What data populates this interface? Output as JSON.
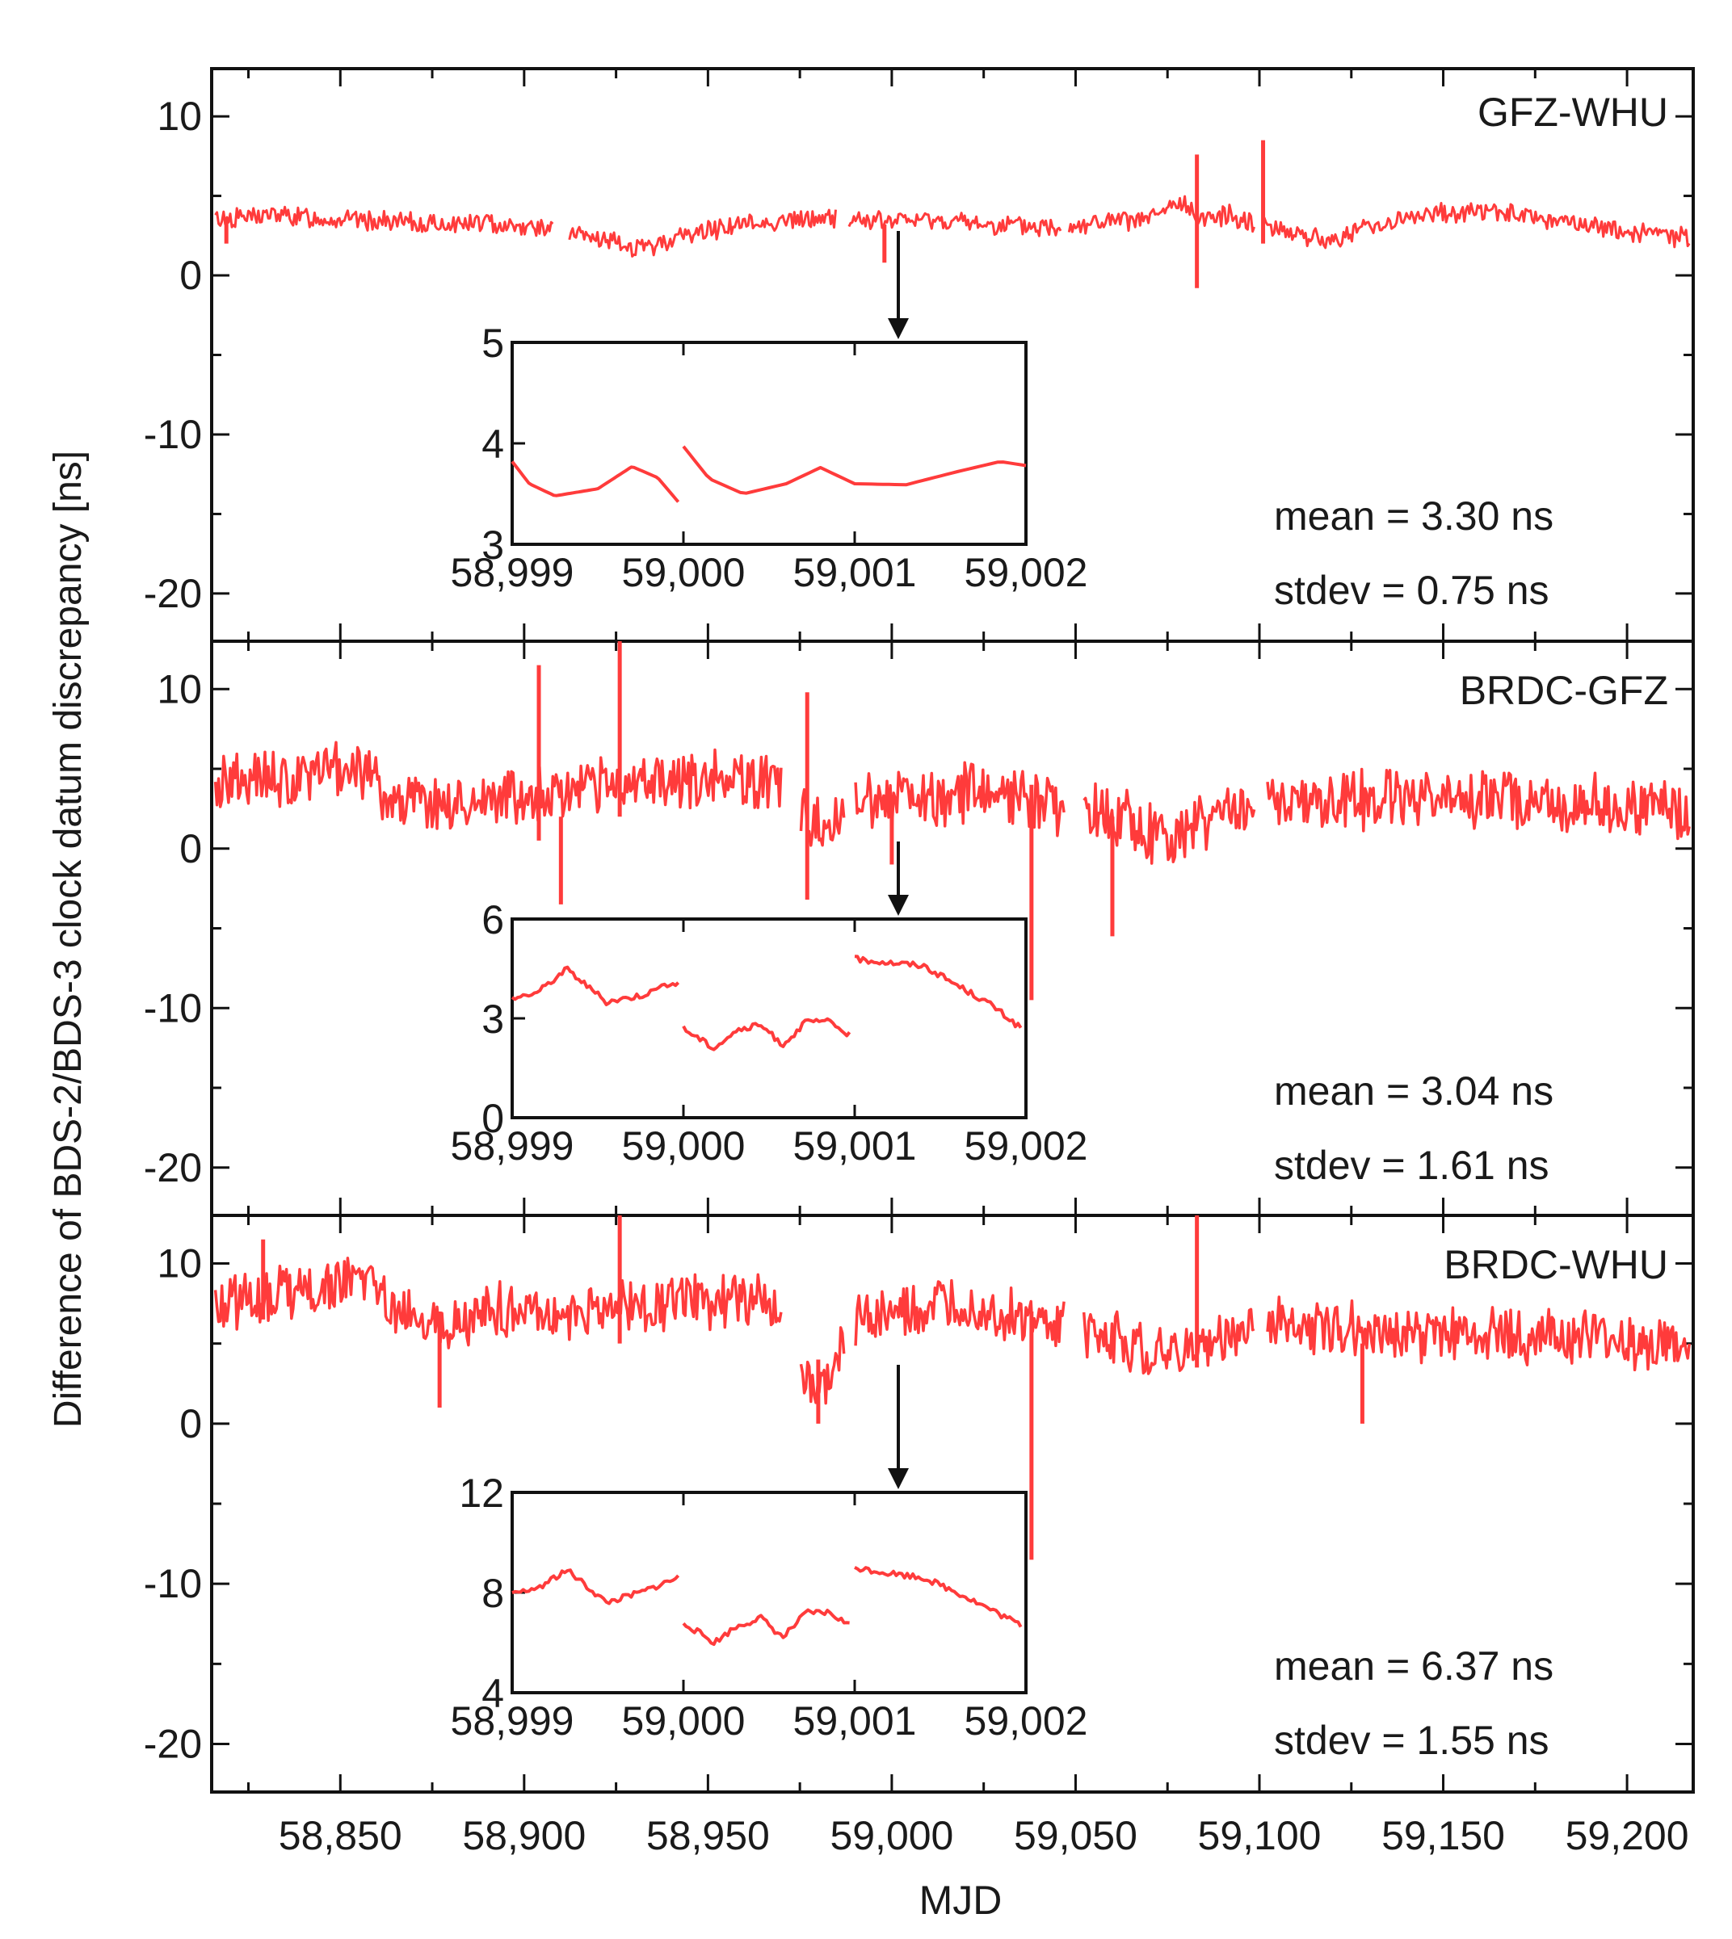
{
  "figure": {
    "ylabel": "Difference of BDS-2/BDS-3 clock datum discrepancy [ns]",
    "xlabel": "MJD",
    "series_color": "#ff3b3b"
  },
  "chart_data": [
    {
      "type": "line",
      "title": "GFZ-WHU",
      "xlabel": "MJD",
      "ylabel": "Difference of BDS-2/BDS-3 clock datum discrepancy [ns]",
      "xlim": [
        58815,
        59218
      ],
      "ylim": [
        -23,
        13
      ],
      "xticks": [
        58850,
        58900,
        58950,
        59000,
        59050,
        59100,
        59150,
        59200
      ],
      "xtick_labels": [
        "58,850",
        "58,900",
        "58,950",
        "59,000",
        "59,050",
        "59,100",
        "59,150",
        "59,200"
      ],
      "yticks": [
        10,
        0,
        -10,
        -20
      ],
      "ytick_labels": [
        "10",
        "0",
        "-10",
        "-20"
      ],
      "series": [
        {
          "name": "GFZ-WHU",
          "color": "#ff3b3b",
          "mean": 3.3,
          "stdev": 0.75,
          "x": [
            58815,
            58830,
            58845,
            58860,
            58875,
            58890,
            58905,
            58915,
            58925,
            58932,
            58940,
            58955,
            58970,
            58985,
            58998,
            59010,
            59025,
            59040,
            59055,
            59070,
            59078,
            59085,
            59092,
            59100,
            59110,
            59118,
            59130,
            59145,
            59160,
            59175,
            59190,
            59205,
            59218
          ],
          "values": [
            3.5,
            3.8,
            3.6,
            3.4,
            3.2,
            3.3,
            3.0,
            2.5,
            2.0,
            1.6,
            2.3,
            3.1,
            3.4,
            3.6,
            3.4,
            3.5,
            3.2,
            3.0,
            3.3,
            3.5,
            4.5,
            3.6,
            3.8,
            3.3,
            2.7,
            2.1,
            3.1,
            3.8,
            4.1,
            3.6,
            3.1,
            2.6,
            2.4
          ]
        }
      ],
      "spikes": [
        {
          "x": 59083,
          "low": -0.8,
          "high": 7.6
        },
        {
          "x": 59101,
          "low": 2.0,
          "high": 8.5
        },
        {
          "x": 58998,
          "low": 0.8,
          "high": 3.2
        },
        {
          "x": 58819,
          "low": 2.0,
          "high": 3.6
        }
      ],
      "stats": {
        "mean_text": "mean = 3.30 ns",
        "stdev_text": "stdev = 0.75 ns"
      },
      "inset": {
        "xlim": [
          58999,
          59002
        ],
        "ylim": [
          3,
          5
        ],
        "xticks": [
          58999,
          59000,
          59001,
          59002
        ],
        "xtick_labels": [
          "58,999",
          "59,000",
          "59,001",
          "59,002"
        ],
        "yticks": [
          5,
          4,
          3
        ],
        "ytick_labels": [
          "5",
          "4",
          "3"
        ],
        "segments": [
          {
            "x": [
              58999.0,
              58999.1,
              58999.25,
              58999.5,
              58999.7,
              58999.85,
              58999.97
            ],
            "values": [
              3.82,
              3.6,
              3.48,
              3.55,
              3.77,
              3.66,
              3.42
            ]
          },
          {
            "x": [
              59000.0,
              59000.15,
              59000.35,
              59000.6,
              59000.8,
              59001.0,
              59001.3,
              59001.6,
              59001.85,
              59002.0
            ],
            "values": [
              3.97,
              3.65,
              3.5,
              3.6,
              3.76,
              3.6,
              3.59,
              3.72,
              3.82,
              3.78
            ]
          }
        ]
      }
    },
    {
      "type": "line",
      "title": "BRDC-GFZ",
      "xlabel": "MJD",
      "ylabel": "Difference of BDS-2/BDS-3 clock datum discrepancy [ns]",
      "xlim": [
        58815,
        59218
      ],
      "ylim": [
        -23,
        13
      ],
      "xticks": [
        58850,
        58900,
        58950,
        59000,
        59050,
        59100,
        59150,
        59200
      ],
      "xtick_labels": [
        "58,850",
        "58,900",
        "58,950",
        "59,000",
        "59,050",
        "59,100",
        "59,150",
        "59,200"
      ],
      "yticks": [
        10,
        0,
        -10,
        -20
      ],
      "ytick_labels": [
        "10",
        "0",
        "-10",
        "-20"
      ],
      "series": [
        {
          "name": "BRDC-GFZ",
          "color": "#ff3b3b",
          "mean": 3.04,
          "stdev": 1.61,
          "x": [
            58815,
            58830,
            58845,
            58855,
            58865,
            58880,
            58895,
            58910,
            58925,
            58940,
            58955,
            58970,
            58980,
            58990,
            59005,
            59020,
            59035,
            59050,
            59065,
            59075,
            59085,
            59100,
            59120,
            59140,
            59160,
            59180,
            59200,
            59218
          ],
          "values": [
            3.8,
            4.2,
            4.5,
            5.2,
            3.2,
            2.8,
            3.4,
            3.5,
            3.9,
            4.2,
            4.5,
            3.9,
            1.2,
            3.2,
            3.0,
            3.4,
            2.9,
            2.4,
            1.6,
            0.5,
            1.8,
            2.7,
            3.0,
            3.1,
            3.2,
            2.9,
            2.7,
            2.2
          ]
        }
      ],
      "spikes": [
        {
          "x": 58904,
          "low": 0.5,
          "high": 11.5
        },
        {
          "x": 58910,
          "low": -3.5,
          "high": 2.0
        },
        {
          "x": 58926,
          "low": 2.0,
          "high": 13.0
        },
        {
          "x": 58977,
          "low": -3.2,
          "high": 9.8
        },
        {
          "x": 59038,
          "low": -9.5,
          "high": 4.0
        },
        {
          "x": 59060,
          "low": -5.5,
          "high": 2.0
        },
        {
          "x": 59000,
          "low": -1.0,
          "high": 3.0
        }
      ],
      "stats": {
        "mean_text": "mean = 3.04 ns",
        "stdev_text": "stdev = 1.61 ns"
      },
      "inset": {
        "xlim": [
          58999,
          59002
        ],
        "ylim": [
          0,
          6
        ],
        "xticks": [
          58999,
          59000,
          59001,
          59002
        ],
        "xtick_labels": [
          "58,999",
          "59,000",
          "59,001",
          "59,002"
        ],
        "yticks": [
          6,
          3,
          0
        ],
        "ytick_labels": [
          "6",
          "3",
          "0"
        ],
        "segments": [
          {
            "x": [
              58999.0,
              58999.15,
              58999.32,
              58999.55,
              58999.75,
              58999.97
            ],
            "values": [
              3.6,
              3.8,
              4.5,
              3.5,
              3.7,
              4.1
            ]
          },
          {
            "x": [
              59000.0,
              59000.18,
              59000.3,
              59000.45,
              59000.58,
              59000.72,
              59000.85,
              59000.97
            ],
            "values": [
              2.7,
              2.1,
              2.6,
              2.8,
              2.2,
              2.9,
              2.9,
              2.5
            ]
          },
          {
            "x": [
              59001.0,
              59001.18,
              59001.4,
              59001.6,
              59001.8,
              59001.97
            ],
            "values": [
              4.8,
              4.7,
              4.6,
              4.0,
              3.4,
              2.7
            ]
          }
        ]
      }
    },
    {
      "type": "line",
      "title": "BRDC-WHU",
      "xlabel": "MJD",
      "ylabel": "Difference of BDS-2/BDS-3 clock datum discrepancy [ns]",
      "xlim": [
        58815,
        59218
      ],
      "ylim": [
        -23,
        13
      ],
      "xticks": [
        58850,
        58900,
        58950,
        59000,
        59050,
        59100,
        59150,
        59200
      ],
      "xtick_labels": [
        "58,850",
        "58,900",
        "58,950",
        "59,000",
        "59,050",
        "59,100",
        "59,150",
        "59,200"
      ],
      "yticks": [
        10,
        0,
        -10,
        -20
      ],
      "ytick_labels": [
        "10",
        "0",
        "-10",
        "-20"
      ],
      "series": [
        {
          "name": "BRDC-WHU",
          "color": "#ff3b3b",
          "mean": 6.37,
          "stdev": 1.55,
          "x": [
            58815,
            58830,
            58845,
            58855,
            58865,
            58880,
            58895,
            58910,
            58925,
            58940,
            58955,
            58970,
            58980,
            58990,
            59005,
            59020,
            59035,
            59050,
            59065,
            59075,
            59085,
            59100,
            59120,
            59140,
            59160,
            59180,
            59200,
            59218
          ],
          "values": [
            7.5,
            8.0,
            8.5,
            9.2,
            7.0,
            6.5,
            7.2,
            6.8,
            7.4,
            7.6,
            7.8,
            7.2,
            1.5,
            6.6,
            6.9,
            7.6,
            6.5,
            5.8,
            5.1,
            4.2,
            4.8,
            6.4,
            6.0,
            5.6,
            5.6,
            5.4,
            5.0,
            4.4
          ]
        }
      ],
      "spikes": [
        {
          "x": 58829,
          "low": 6.5,
          "high": 11.5
        },
        {
          "x": 58877,
          "low": 1.0,
          "high": 7.0
        },
        {
          "x": 58926,
          "low": 5.0,
          "high": 13.0
        },
        {
          "x": 58980,
          "low": 0.0,
          "high": 4.0
        },
        {
          "x": 59038,
          "low": -8.5,
          "high": 7.0
        },
        {
          "x": 59083,
          "low": 3.5,
          "high": 13.0
        },
        {
          "x": 59128,
          "low": 0.0,
          "high": 5.0
        }
      ],
      "stats": {
        "mean_text": "mean = 6.37 ns",
        "stdev_text": "stdev = 1.55 ns"
      },
      "inset": {
        "xlim": [
          58999,
          59002
        ],
        "ylim": [
          4,
          12
        ],
        "xticks": [
          58999,
          59000,
          59001,
          59002
        ],
        "xtick_labels": [
          "58,999",
          "59,000",
          "59,001",
          "59,002"
        ],
        "yticks": [
          12,
          8,
          4
        ],
        "ytick_labels": [
          "12",
          "8",
          "4"
        ],
        "segments": [
          {
            "x": [
              58999.0,
              58999.15,
              58999.32,
              58999.55,
              58999.75,
              58999.97
            ],
            "values": [
              7.9,
              8.2,
              8.9,
              7.6,
              8.0,
              8.6
            ]
          },
          {
            "x": [
              59000.0,
              59000.18,
              59000.3,
              59000.45,
              59000.58,
              59000.72,
              59000.85,
              59000.97
            ],
            "values": [
              6.8,
              6.0,
              6.6,
              7.0,
              6.2,
              7.2,
              7.2,
              6.7
            ]
          },
          {
            "x": [
              59001.0,
              59001.18,
              59001.4,
              59001.6,
              59001.8,
              59001.97
            ],
            "values": [
              9.0,
              8.8,
              8.6,
              8.0,
              7.3,
              6.7
            ]
          }
        ]
      }
    }
  ]
}
